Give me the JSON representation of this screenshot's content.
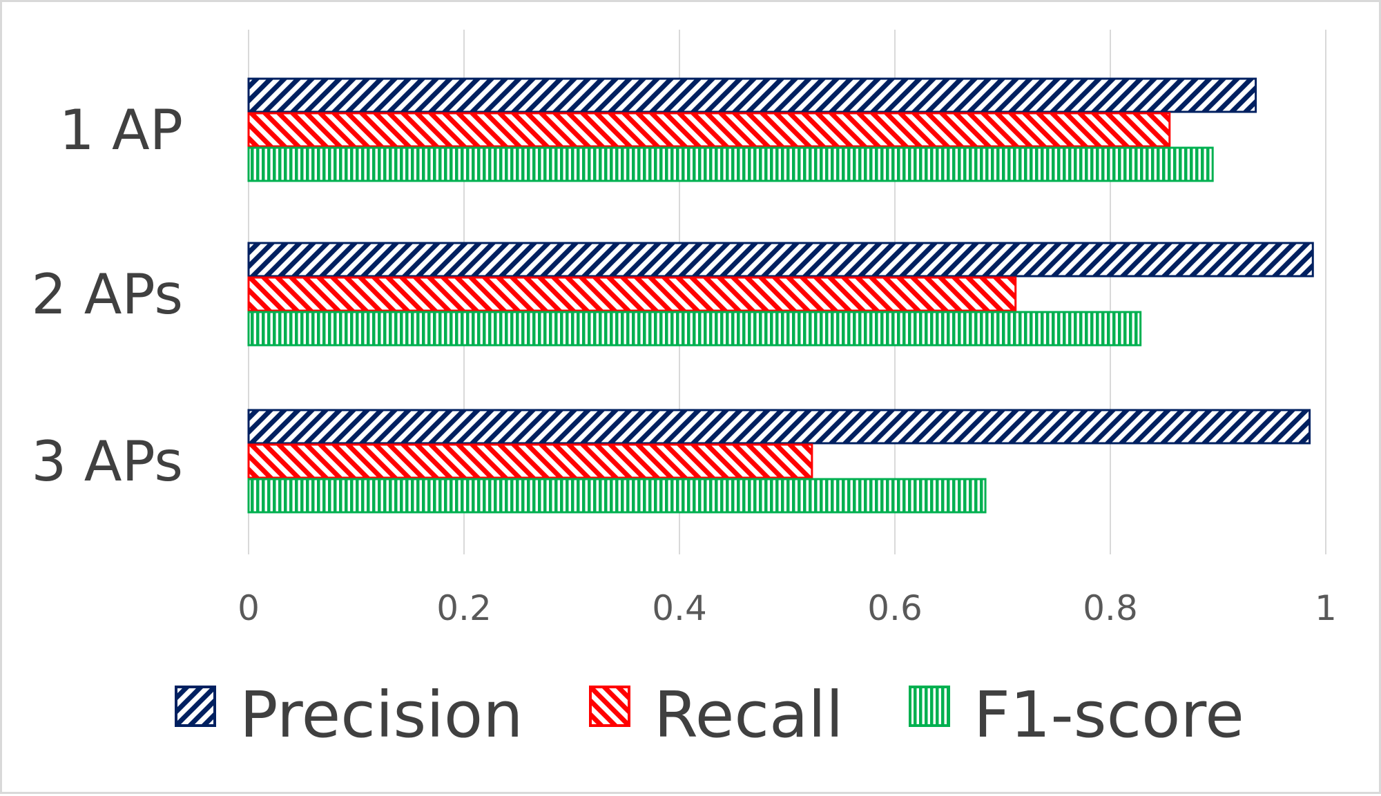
{
  "chart_data": {
    "type": "bar",
    "orientation": "horizontal",
    "title": "",
    "xlabel": "",
    "ylabel": "",
    "categories": [
      "1 AP",
      "2 APs",
      "3 APs"
    ],
    "series": [
      {
        "name": "Precision",
        "values": [
          0.935,
          0.988,
          0.985
        ],
        "color": "#002060",
        "pattern": "diagonal-up"
      },
      {
        "name": "Recall",
        "values": [
          0.855,
          0.712,
          0.523
        ],
        "color": "#ff0000",
        "pattern": "diagonal-down"
      },
      {
        "name": "F1-score",
        "values": [
          0.895,
          0.828,
          0.684
        ],
        "color": "#00b050",
        "pattern": "vertical"
      }
    ],
    "xlim": [
      0,
      1
    ],
    "xticks": [
      "0",
      "0.2",
      "0.4",
      "0.6",
      "0.8",
      "1"
    ],
    "grid": "vertical",
    "legend_position": "bottom"
  }
}
